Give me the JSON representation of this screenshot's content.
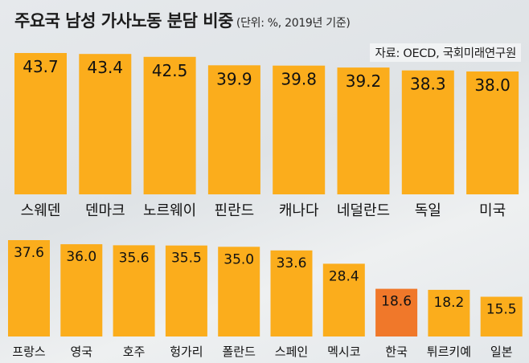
{
  "header": {
    "title": "주요국 남성 가사노동 분담 비중",
    "unit": "(단위: %, 2019년 기준)",
    "source": "자료: OECD, 국회미래연구원"
  },
  "colors": {
    "bar": "#fbad1c",
    "highlight": "#f0782a"
  },
  "chart_data": {
    "type": "bar",
    "title": "주요국 남성 가사노동 분담 비중",
    "unit": "(단위: %, 2019년 기준)",
    "source": "자료: OECD, 국회미래연구원",
    "ylim": [
      0,
      45
    ],
    "grid": false,
    "highlight": "한국",
    "categories": [
      "스웨덴",
      "덴마크",
      "노르웨이",
      "핀란드",
      "캐나다",
      "네덜란드",
      "독일",
      "미국",
      "프랑스",
      "영국",
      "호주",
      "헝가리",
      "폴란드",
      "스페인",
      "멕시코",
      "한국",
      "튀르키예",
      "일본"
    ],
    "values": [
      43.7,
      43.4,
      42.5,
      39.9,
      39.8,
      39.2,
      38.3,
      38.0,
      37.6,
      36.0,
      35.6,
      35.5,
      35.0,
      33.6,
      28.4,
      18.6,
      18.2,
      15.5
    ],
    "value_labels": [
      "43.7",
      "43.4",
      "42.5",
      "39.9",
      "39.8",
      "39.2",
      "38.3",
      "38.0",
      "37.6",
      "36.0",
      "35.6",
      "35.5",
      "35.0",
      "33.6",
      "28.4",
      "18.6",
      "18.2",
      "15.5"
    ]
  }
}
